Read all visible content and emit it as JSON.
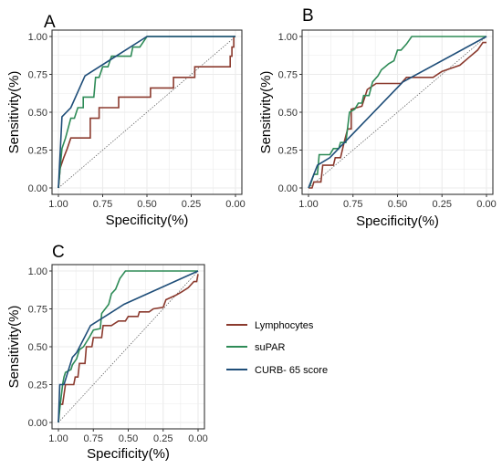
{
  "colors": {
    "lymphocytes": "#8b3a2e",
    "supar": "#2e8b57",
    "curb65": "#1f4e79",
    "reference": "#555555",
    "grid": "#ebebeb"
  },
  "legend": {
    "placement": "right",
    "entries": [
      {
        "key": "lymphocytes",
        "label": "Lymphocytes"
      },
      {
        "key": "supar",
        "label": "suPAR"
      },
      {
        "key": "curb65",
        "label": "CURB- 65 score"
      }
    ]
  },
  "chart_data": [
    {
      "panel": "A",
      "type": "line",
      "xlabel": "Specificity(%)",
      "ylabel": "Sensitivity(%)",
      "xlim": [
        1.0,
        0.0
      ],
      "xreversed": true,
      "ylim": [
        0.0,
        1.0
      ],
      "xticks": [
        "1.00",
        "0.75",
        "0.50",
        "0.25",
        "0.00"
      ],
      "yticks": [
        "0.00",
        "0.25",
        "0.50",
        "0.75",
        "1.00"
      ],
      "grid": true,
      "reference_line": true,
      "series": [
        {
          "key": "lymphocytes",
          "points": [
            [
              1.0,
              0.0
            ],
            [
              0.99,
              0.13
            ],
            [
              0.97,
              0.2
            ],
            [
              0.95,
              0.26
            ],
            [
              0.93,
              0.33
            ],
            [
              0.82,
              0.33
            ],
            [
              0.82,
              0.46
            ],
            [
              0.77,
              0.46
            ],
            [
              0.77,
              0.53
            ],
            [
              0.66,
              0.53
            ],
            [
              0.66,
              0.6
            ],
            [
              0.52,
              0.6
            ],
            [
              0.48,
              0.6
            ],
            [
              0.48,
              0.66
            ],
            [
              0.42,
              0.66
            ],
            [
              0.35,
              0.66
            ],
            [
              0.35,
              0.73
            ],
            [
              0.23,
              0.73
            ],
            [
              0.23,
              0.8
            ],
            [
              0.03,
              0.8
            ],
            [
              0.03,
              0.87
            ],
            [
              0.02,
              0.87
            ],
            [
              0.02,
              0.93
            ],
            [
              0.01,
              0.93
            ],
            [
              0.01,
              1.0
            ],
            [
              0.0,
              1.0
            ]
          ]
        },
        {
          "key": "supar",
          "points": [
            [
              1.0,
              0.0
            ],
            [
              0.99,
              0.13
            ],
            [
              0.98,
              0.26
            ],
            [
              0.96,
              0.33
            ],
            [
              0.93,
              0.46
            ],
            [
              0.91,
              0.46
            ],
            [
              0.89,
              0.53
            ],
            [
              0.86,
              0.53
            ],
            [
              0.86,
              0.6
            ],
            [
              0.8,
              0.6
            ],
            [
              0.79,
              0.73
            ],
            [
              0.77,
              0.73
            ],
            [
              0.75,
              0.8
            ],
            [
              0.72,
              0.8
            ],
            [
              0.7,
              0.87
            ],
            [
              0.59,
              0.87
            ],
            [
              0.58,
              0.93
            ],
            [
              0.54,
              0.93
            ],
            [
              0.5,
              1.0
            ],
            [
              0.0,
              1.0
            ]
          ]
        },
        {
          "key": "curb65",
          "points": [
            [
              1.0,
              0.0
            ],
            [
              0.98,
              0.47
            ],
            [
              0.93,
              0.53
            ],
            [
              0.85,
              0.74
            ],
            [
              0.5,
              1.0
            ],
            [
              0.0,
              1.0
            ]
          ]
        }
      ]
    },
    {
      "panel": "B",
      "type": "line",
      "xlabel": "Specificity(%)",
      "ylabel": "Sensitivity(%)",
      "xlim": [
        1.0,
        0.0
      ],
      "xreversed": true,
      "ylim": [
        0.0,
        1.0
      ],
      "xticks": [
        "1.00",
        "0.75",
        "0.50",
        "0.25",
        "0.00"
      ],
      "yticks": [
        "0.00",
        "0.25",
        "0.50",
        "0.75",
        "1.00"
      ],
      "grid": true,
      "reference_line": true,
      "series": [
        {
          "key": "lymphocytes",
          "points": [
            [
              1.0,
              0.0
            ],
            [
              0.98,
              0.0
            ],
            [
              0.97,
              0.04
            ],
            [
              0.93,
              0.04
            ],
            [
              0.92,
              0.15
            ],
            [
              0.86,
              0.15
            ],
            [
              0.85,
              0.2
            ],
            [
              0.82,
              0.2
            ],
            [
              0.8,
              0.3
            ],
            [
              0.78,
              0.39
            ],
            [
              0.76,
              0.39
            ],
            [
              0.76,
              0.52
            ],
            [
              0.7,
              0.54
            ],
            [
              0.67,
              0.65
            ],
            [
              0.62,
              0.69
            ],
            [
              0.48,
              0.69
            ],
            [
              0.45,
              0.73
            ],
            [
              0.3,
              0.73
            ],
            [
              0.25,
              0.77
            ],
            [
              0.15,
              0.81
            ],
            [
              0.1,
              0.86
            ],
            [
              0.05,
              0.91
            ],
            [
              0.02,
              0.96
            ],
            [
              0.0,
              0.96
            ]
          ]
        },
        {
          "key": "supar",
          "points": [
            [
              1.0,
              0.0
            ],
            [
              0.99,
              0.02
            ],
            [
              0.97,
              0.09
            ],
            [
              0.95,
              0.09
            ],
            [
              0.94,
              0.22
            ],
            [
              0.88,
              0.22
            ],
            [
              0.86,
              0.26
            ],
            [
              0.83,
              0.26
            ],
            [
              0.82,
              0.3
            ],
            [
              0.79,
              0.3
            ],
            [
              0.77,
              0.5
            ],
            [
              0.74,
              0.52
            ],
            [
              0.72,
              0.56
            ],
            [
              0.7,
              0.56
            ],
            [
              0.69,
              0.61
            ],
            [
              0.66,
              0.61
            ],
            [
              0.64,
              0.7
            ],
            [
              0.61,
              0.74
            ],
            [
              0.59,
              0.78
            ],
            [
              0.57,
              0.8
            ],
            [
              0.55,
              0.82
            ],
            [
              0.52,
              0.84
            ],
            [
              0.5,
              0.91
            ],
            [
              0.48,
              0.91
            ],
            [
              0.45,
              0.95
            ],
            [
              0.42,
              1.0
            ],
            [
              0.0,
              1.0
            ]
          ]
        },
        {
          "key": "curb65",
          "points": [
            [
              1.0,
              0.0
            ],
            [
              0.95,
              0.15
            ],
            [
              0.88,
              0.2
            ],
            [
              0.47,
              0.7
            ],
            [
              0.0,
              1.0
            ]
          ]
        }
      ]
    },
    {
      "panel": "C",
      "type": "line",
      "xlabel": "Specificity(%)",
      "ylabel": "Sensitivity(%)",
      "xlim": [
        1.0,
        0.0
      ],
      "xreversed": true,
      "ylim": [
        0.0,
        1.0
      ],
      "xticks": [
        "1.00",
        "0.75",
        "0.50",
        "0.25",
        "0.00"
      ],
      "yticks": [
        "0.00",
        "0.25",
        "0.50",
        "0.75",
        "1.00"
      ],
      "grid": true,
      "reference_line": true,
      "series": [
        {
          "key": "lymphocytes",
          "points": [
            [
              1.0,
              0.0
            ],
            [
              0.99,
              0.12
            ],
            [
              0.97,
              0.12
            ],
            [
              0.95,
              0.25
            ],
            [
              0.89,
              0.25
            ],
            [
              0.88,
              0.3
            ],
            [
              0.86,
              0.3
            ],
            [
              0.85,
              0.39
            ],
            [
              0.81,
              0.39
            ],
            [
              0.8,
              0.5
            ],
            [
              0.76,
              0.5
            ],
            [
              0.75,
              0.56
            ],
            [
              0.69,
              0.56
            ],
            [
              0.68,
              0.64
            ],
            [
              0.62,
              0.64
            ],
            [
              0.57,
              0.67
            ],
            [
              0.52,
              0.67
            ],
            [
              0.5,
              0.7
            ],
            [
              0.43,
              0.7
            ],
            [
              0.42,
              0.73
            ],
            [
              0.35,
              0.73
            ],
            [
              0.32,
              0.75
            ],
            [
              0.25,
              0.76
            ],
            [
              0.23,
              0.81
            ],
            [
              0.16,
              0.84
            ],
            [
              0.12,
              0.86
            ],
            [
              0.07,
              0.89
            ],
            [
              0.03,
              0.93
            ],
            [
              0.01,
              0.93
            ],
            [
              0.0,
              0.98
            ]
          ]
        },
        {
          "key": "supar",
          "points": [
            [
              1.0,
              0.0
            ],
            [
              0.99,
              0.09
            ],
            [
              0.97,
              0.25
            ],
            [
              0.96,
              0.3
            ],
            [
              0.95,
              0.33
            ],
            [
              0.91,
              0.35
            ],
            [
              0.9,
              0.38
            ],
            [
              0.87,
              0.42
            ],
            [
              0.85,
              0.48
            ],
            [
              0.82,
              0.5
            ],
            [
              0.78,
              0.56
            ],
            [
              0.75,
              0.61
            ],
            [
              0.7,
              0.62
            ],
            [
              0.69,
              0.72
            ],
            [
              0.64,
              0.78
            ],
            [
              0.62,
              0.85
            ],
            [
              0.59,
              0.88
            ],
            [
              0.56,
              0.95
            ],
            [
              0.52,
              1.0
            ],
            [
              0.0,
              1.0
            ]
          ]
        },
        {
          "key": "curb65",
          "points": [
            [
              1.0,
              0.0
            ],
            [
              0.99,
              0.25
            ],
            [
              0.96,
              0.25
            ],
            [
              0.9,
              0.43
            ],
            [
              0.87,
              0.46
            ],
            [
              0.77,
              0.64
            ],
            [
              0.53,
              0.78
            ],
            [
              0.0,
              1.0
            ]
          ]
        }
      ]
    }
  ]
}
